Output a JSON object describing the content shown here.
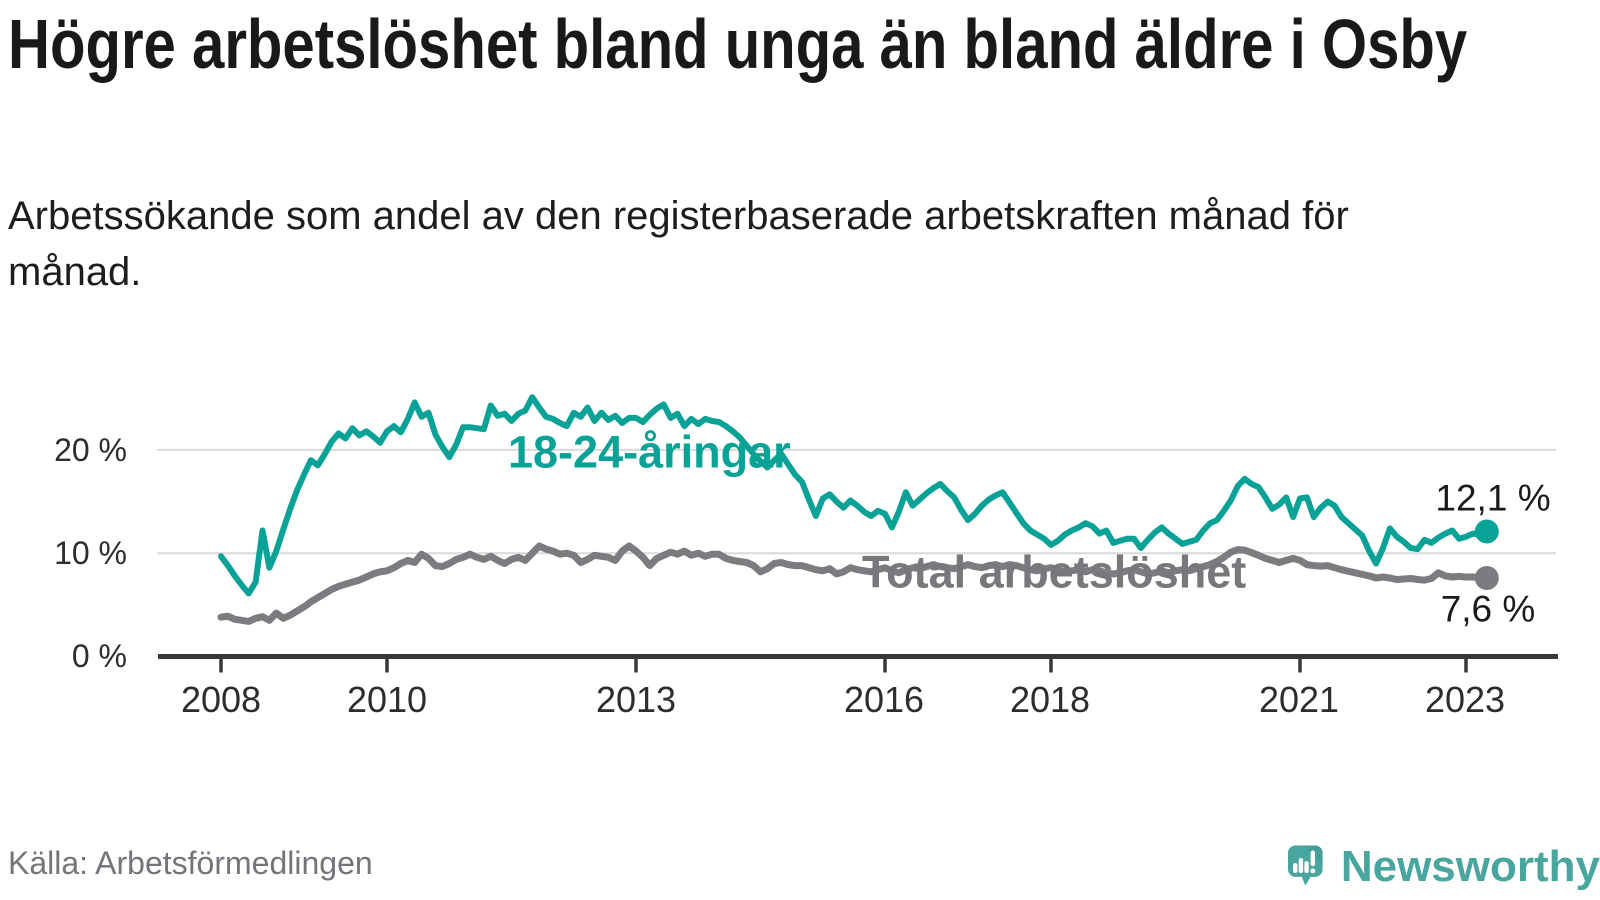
{
  "header": {
    "title": "Högre arbetslöshet bland unga än bland äldre i Osby",
    "subtitle": "Arbetssökande som andel av den registerbaserade arbetskraften månad för månad."
  },
  "chart_data": {
    "type": "line",
    "unit": "%",
    "x_start": "2008-01",
    "x_end": "2023-04",
    "ylim": [
      0,
      26
    ],
    "grid": "horizontal",
    "grid_color": "#d9d9d9",
    "axis_color": "#383838",
    "y_ticks": [
      {
        "label": "0 %",
        "value": 0
      },
      {
        "label": "10 %",
        "value": 10
      },
      {
        "label": "20 %",
        "value": 20
      }
    ],
    "x_ticks": [
      {
        "label": "2008",
        "year": 2008
      },
      {
        "label": "2010",
        "year": 2010
      },
      {
        "label": "2013",
        "year": 2013
      },
      {
        "label": "2016",
        "year": 2016
      },
      {
        "label": "2018",
        "year": 2018
      },
      {
        "label": "2021",
        "year": 2021
      },
      {
        "label": "2023",
        "year": 2023
      }
    ],
    "series": [
      {
        "name": "18-24-åringar",
        "color": "#0aa296",
        "end_label": "12,1 %",
        "last_value": 12.1,
        "values": [
          9.7,
          8.8,
          7.8,
          6.9,
          6.1,
          7.2,
          12.2,
          8.6,
          10.2,
          12.3,
          14.3,
          16.1,
          17.6,
          19.0,
          18.5,
          19.6,
          20.8,
          21.6,
          21.1,
          22.1,
          21.4,
          21.8,
          21.3,
          20.7,
          21.8,
          22.3,
          21.7,
          23.0,
          24.6,
          23.2,
          23.6,
          21.5,
          20.3,
          19.3,
          20.5,
          22.2,
          22.2,
          22.1,
          22.0,
          24.3,
          23.3,
          23.5,
          22.8,
          23.5,
          23.8,
          25.1,
          24.1,
          23.2,
          23.0,
          22.6,
          22.3,
          23.6,
          23.2,
          24.1,
          22.8,
          23.6,
          22.9,
          23.3,
          22.6,
          23.1,
          23.1,
          22.7,
          23.4,
          24.0,
          24.4,
          23.1,
          23.5,
          22.3,
          23.0,
          22.5,
          23.0,
          22.8,
          22.7,
          22.3,
          21.8,
          21.2,
          20.4,
          19.6,
          18.9,
          18.3,
          19.0,
          19.6,
          18.6,
          17.6,
          16.9,
          15.2,
          13.6,
          15.3,
          15.7,
          15.0,
          14.4,
          15.1,
          14.6,
          14.0,
          13.6,
          14.1,
          13.8,
          12.5,
          14.0,
          15.9,
          14.6,
          15.2,
          15.8,
          16.3,
          16.7,
          16.0,
          15.4,
          14.2,
          13.2,
          13.8,
          14.6,
          15.2,
          15.6,
          15.9,
          14.9,
          13.9,
          12.9,
          12.2,
          11.8,
          11.4,
          10.8,
          11.2,
          11.8,
          12.2,
          12.5,
          12.9,
          12.6,
          11.9,
          12.2,
          11.0,
          11.2,
          11.4,
          11.4,
          10.5,
          11.3,
          12.0,
          12.5,
          11.9,
          11.4,
          10.9,
          11.1,
          11.3,
          12.2,
          12.9,
          13.2,
          14.1,
          15.1,
          16.5,
          17.2,
          16.7,
          16.4,
          15.4,
          14.3,
          14.7,
          15.4,
          13.5,
          15.3,
          15.4,
          13.5,
          14.4,
          15.0,
          14.6,
          13.5,
          12.9,
          12.3,
          11.7,
          10.2,
          9.0,
          10.5,
          12.4,
          11.6,
          11.1,
          10.5,
          10.4,
          11.3,
          11.0,
          11.5,
          11.9,
          12.2,
          11.4,
          11.6,
          11.9,
          11.8,
          12.1
        ]
      },
      {
        "name": "Total arbetslöshet",
        "color": "#7b7b80",
        "end_label": "7,6 %",
        "last_value": 7.6,
        "values": [
          3.8,
          3.9,
          3.6,
          3.5,
          3.4,
          3.7,
          3.85,
          3.5,
          4.2,
          3.7,
          4.0,
          4.4,
          4.8,
          5.3,
          5.7,
          6.1,
          6.5,
          6.8,
          7.0,
          7.2,
          7.4,
          7.7,
          8.0,
          8.2,
          8.3,
          8.6,
          9.0,
          9.3,
          9.1,
          9.9,
          9.5,
          8.8,
          8.7,
          9.0,
          9.4,
          9.6,
          9.9,
          9.6,
          9.4,
          9.7,
          9.3,
          9.0,
          9.4,
          9.6,
          9.3,
          10.0,
          10.7,
          10.4,
          10.2,
          9.9,
          10.0,
          9.8,
          9.1,
          9.4,
          9.8,
          9.7,
          9.6,
          9.3,
          10.2,
          10.7,
          10.2,
          9.6,
          8.8,
          9.5,
          9.8,
          10.1,
          9.9,
          10.2,
          9.8,
          10.0,
          9.7,
          9.9,
          9.9,
          9.5,
          9.3,
          9.2,
          9.1,
          8.8,
          8.2,
          8.5,
          9.0,
          9.1,
          8.9,
          8.8,
          8.8,
          8.6,
          8.4,
          8.3,
          8.5,
          8.0,
          8.2,
          8.6,
          8.4,
          8.3,
          8.2,
          8.4,
          8.6,
          8.3,
          8.1,
          8.4,
          8.6,
          8.5,
          8.7,
          8.9,
          8.7,
          8.6,
          8.5,
          8.7,
          8.9,
          8.7,
          8.6,
          8.8,
          8.9,
          8.7,
          8.9,
          8.8,
          8.6,
          8.4,
          8.3,
          8.5,
          8.6,
          8.4,
          8.2,
          8.3,
          8.4,
          8.2,
          8.4,
          8.3,
          8.1,
          8.0,
          8.1,
          8.3,
          8.4,
          8.2,
          8.0,
          8.1,
          8.3,
          8.1,
          8.3,
          8.4,
          8.3,
          8.5,
          8.7,
          8.9,
          9.2,
          9.6,
          10.1,
          10.35,
          10.3,
          10.05,
          9.8,
          9.5,
          9.3,
          9.1,
          9.3,
          9.5,
          9.3,
          8.9,
          8.8,
          8.75,
          8.8,
          8.6,
          8.4,
          8.25,
          8.1,
          7.95,
          7.8,
          7.6,
          7.7,
          7.6,
          7.45,
          7.5,
          7.55,
          7.45,
          7.4,
          7.55,
          8.1,
          7.8,
          7.7,
          7.75,
          7.7,
          7.7,
          7.65,
          7.6
        ]
      }
    ]
  },
  "footer": {
    "source": "Källa: Arbetsförmedlingen",
    "brand": "Newsworthy",
    "brand_color": "#49a69f"
  }
}
